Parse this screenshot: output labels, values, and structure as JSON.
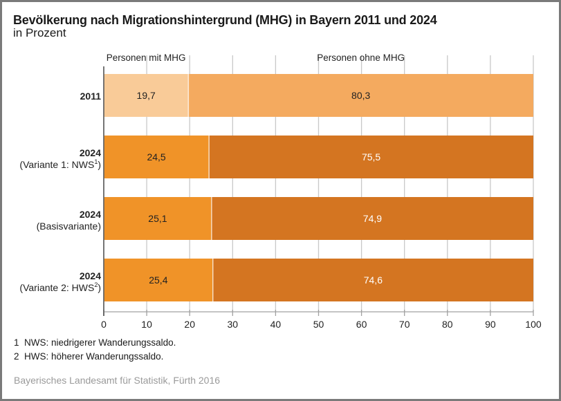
{
  "title": "Bevölkerung nach Migrationshintergrund (MHG) in Bayern 2011 und 2024",
  "subtitle": "in Prozent",
  "footnotes": [
    {
      "num": "1",
      "text": "NWS: niedrigerer Wanderungssaldo."
    },
    {
      "num": "2",
      "text": "HWS: höherer Wanderungssaldo."
    }
  ],
  "source": "Bayerisches Landesamt für Statistik, Fürth 2016",
  "colors": {
    "mhg_2011": "#f9cb98",
    "ohne_2011": "#f4aa5f",
    "mhg_2024": "#f09328",
    "ohne_2024": "#d47521",
    "grid": "#c8c8c8",
    "axis": "#666666"
  },
  "chart_data": {
    "type": "bar",
    "orientation": "horizontal",
    "stacked": true,
    "title": "Bevölkerung nach Migrationshintergrund (MHG) in Bayern 2011 und 2024",
    "subtitle": "in Prozent",
    "xlabel": "",
    "ylabel": "",
    "xlim": [
      0,
      100
    ],
    "xticks": [
      0,
      10,
      20,
      30,
      40,
      50,
      60,
      70,
      80,
      90,
      100
    ],
    "grid": true,
    "legend_placement": "top",
    "categories": [
      {
        "label_bold": "2011",
        "label_sub": "",
        "sup": ""
      },
      {
        "label_bold": "2024",
        "label_sub": "(Variante 1: NWS",
        "sup": "1"
      },
      {
        "label_bold": "2024",
        "label_sub": "(Basisvariante)",
        "sup": ""
      },
      {
        "label_bold": "2024",
        "label_sub": "(Variante 2: HWS",
        "sup": "2"
      }
    ],
    "series": [
      {
        "name": "Personen mit MHG",
        "values": [
          19.7,
          24.5,
          25.1,
          25.4
        ],
        "labels": [
          "19,7",
          "24,5",
          "25,1",
          "25,4"
        ]
      },
      {
        "name": "Personen ohne MHG",
        "values": [
          80.3,
          75.5,
          74.9,
          74.6
        ],
        "labels": [
          "80,3",
          "75,5",
          "74,9",
          "74,6"
        ]
      }
    ]
  }
}
